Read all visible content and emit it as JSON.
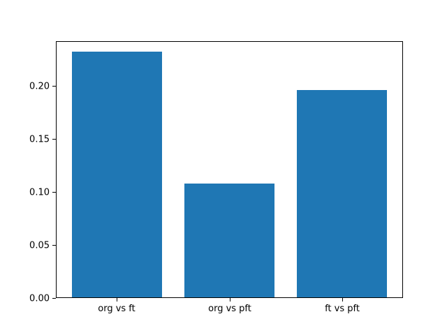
{
  "figure": {
    "background_color": "#ffffff",
    "title": ""
  },
  "chart_data": {
    "type": "bar",
    "categories": [
      "org vs ft",
      "org vs pft",
      "ft vs pft"
    ],
    "values": [
      0.232,
      0.108,
      0.196
    ],
    "title": "",
    "xlabel": "",
    "ylabel": "",
    "ytick_labels": [
      "0.00",
      "0.05",
      "0.10",
      "0.15",
      "0.20"
    ],
    "ytick_values": [
      0.0,
      0.05,
      0.1,
      0.15,
      0.2
    ],
    "ylim": [
      0,
      0.242
    ],
    "bar_color": "#1f77b4",
    "bar_width_fraction": 0.8,
    "x_margin_fraction": 0.05,
    "grid": false,
    "legend": null,
    "spine_color": "#000000"
  }
}
